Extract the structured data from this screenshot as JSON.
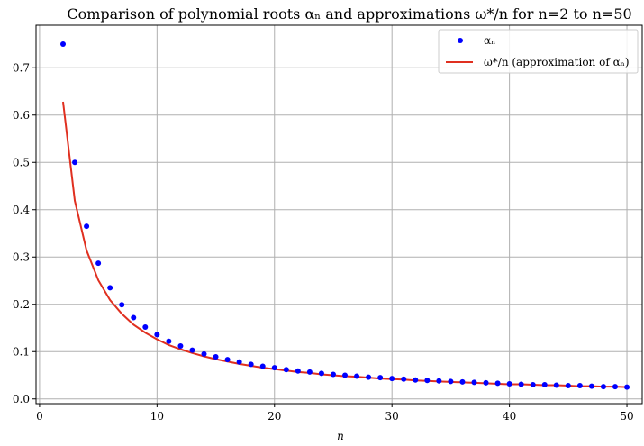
{
  "chart_data": {
    "type": "scatter",
    "title": "Comparison of polynomial roots αₙ and approximations ω*/n for n=2 to n=50",
    "xlabel": "n",
    "ylabel": "",
    "xlim": [
      -0.3,
      51.3
    ],
    "ylim": [
      -0.01,
      0.79
    ],
    "xticks": [
      0,
      10,
      20,
      30,
      40,
      50
    ],
    "yticks": [
      0.0,
      0.1,
      0.2,
      0.3,
      0.4,
      0.5,
      0.6,
      0.7
    ],
    "grid": true,
    "legend_position": "top-right",
    "colors": {
      "scatter": "#0000ff",
      "line": "#e03020"
    },
    "series": [
      {
        "name": "αₙ",
        "type": "scatter",
        "x": [
          2,
          3,
          4,
          5,
          6,
          7,
          8,
          9,
          10,
          11,
          12,
          13,
          14,
          15,
          16,
          17,
          18,
          19,
          20,
          21,
          22,
          23,
          24,
          25,
          26,
          27,
          28,
          29,
          30,
          31,
          32,
          33,
          34,
          35,
          36,
          37,
          38,
          39,
          40,
          41,
          42,
          43,
          44,
          45,
          46,
          47,
          48,
          49,
          50
        ],
        "y": [
          0.75,
          0.5,
          0.365,
          0.287,
          0.235,
          0.199,
          0.172,
          0.152,
          0.136,
          0.122,
          0.112,
          0.103,
          0.095,
          0.089,
          0.083,
          0.078,
          0.073,
          0.069,
          0.066,
          0.062,
          0.059,
          0.057,
          0.054,
          0.052,
          0.05,
          0.048,
          0.046,
          0.045,
          0.043,
          0.042,
          0.04,
          0.039,
          0.038,
          0.037,
          0.036,
          0.035,
          0.034,
          0.033,
          0.032,
          0.031,
          0.03,
          0.03,
          0.029,
          0.028,
          0.028,
          0.027,
          0.026,
          0.026,
          0.025
        ]
      },
      {
        "name": "ω*/n (approximation of αₙ)",
        "type": "line",
        "x": [
          2,
          3,
          4,
          5,
          6,
          7,
          8,
          9,
          10,
          11,
          12,
          13,
          14,
          15,
          16,
          17,
          18,
          19,
          20,
          21,
          22,
          23,
          24,
          25,
          26,
          27,
          28,
          29,
          30,
          31,
          32,
          33,
          34,
          35,
          36,
          37,
          38,
          39,
          40,
          41,
          42,
          43,
          44,
          45,
          46,
          47,
          48,
          49,
          50
        ],
        "y": [
          0.628,
          0.419,
          0.314,
          0.251,
          0.209,
          0.18,
          0.157,
          0.14,
          0.126,
          0.114,
          0.105,
          0.097,
          0.09,
          0.084,
          0.079,
          0.074,
          0.07,
          0.066,
          0.063,
          0.06,
          0.057,
          0.055,
          0.052,
          0.05,
          0.048,
          0.047,
          0.045,
          0.043,
          0.042,
          0.041,
          0.039,
          0.038,
          0.037,
          0.036,
          0.035,
          0.034,
          0.033,
          0.032,
          0.031,
          0.031,
          0.03,
          0.029,
          0.029,
          0.028,
          0.027,
          0.027,
          0.026,
          0.026,
          0.025
        ]
      }
    ]
  }
}
